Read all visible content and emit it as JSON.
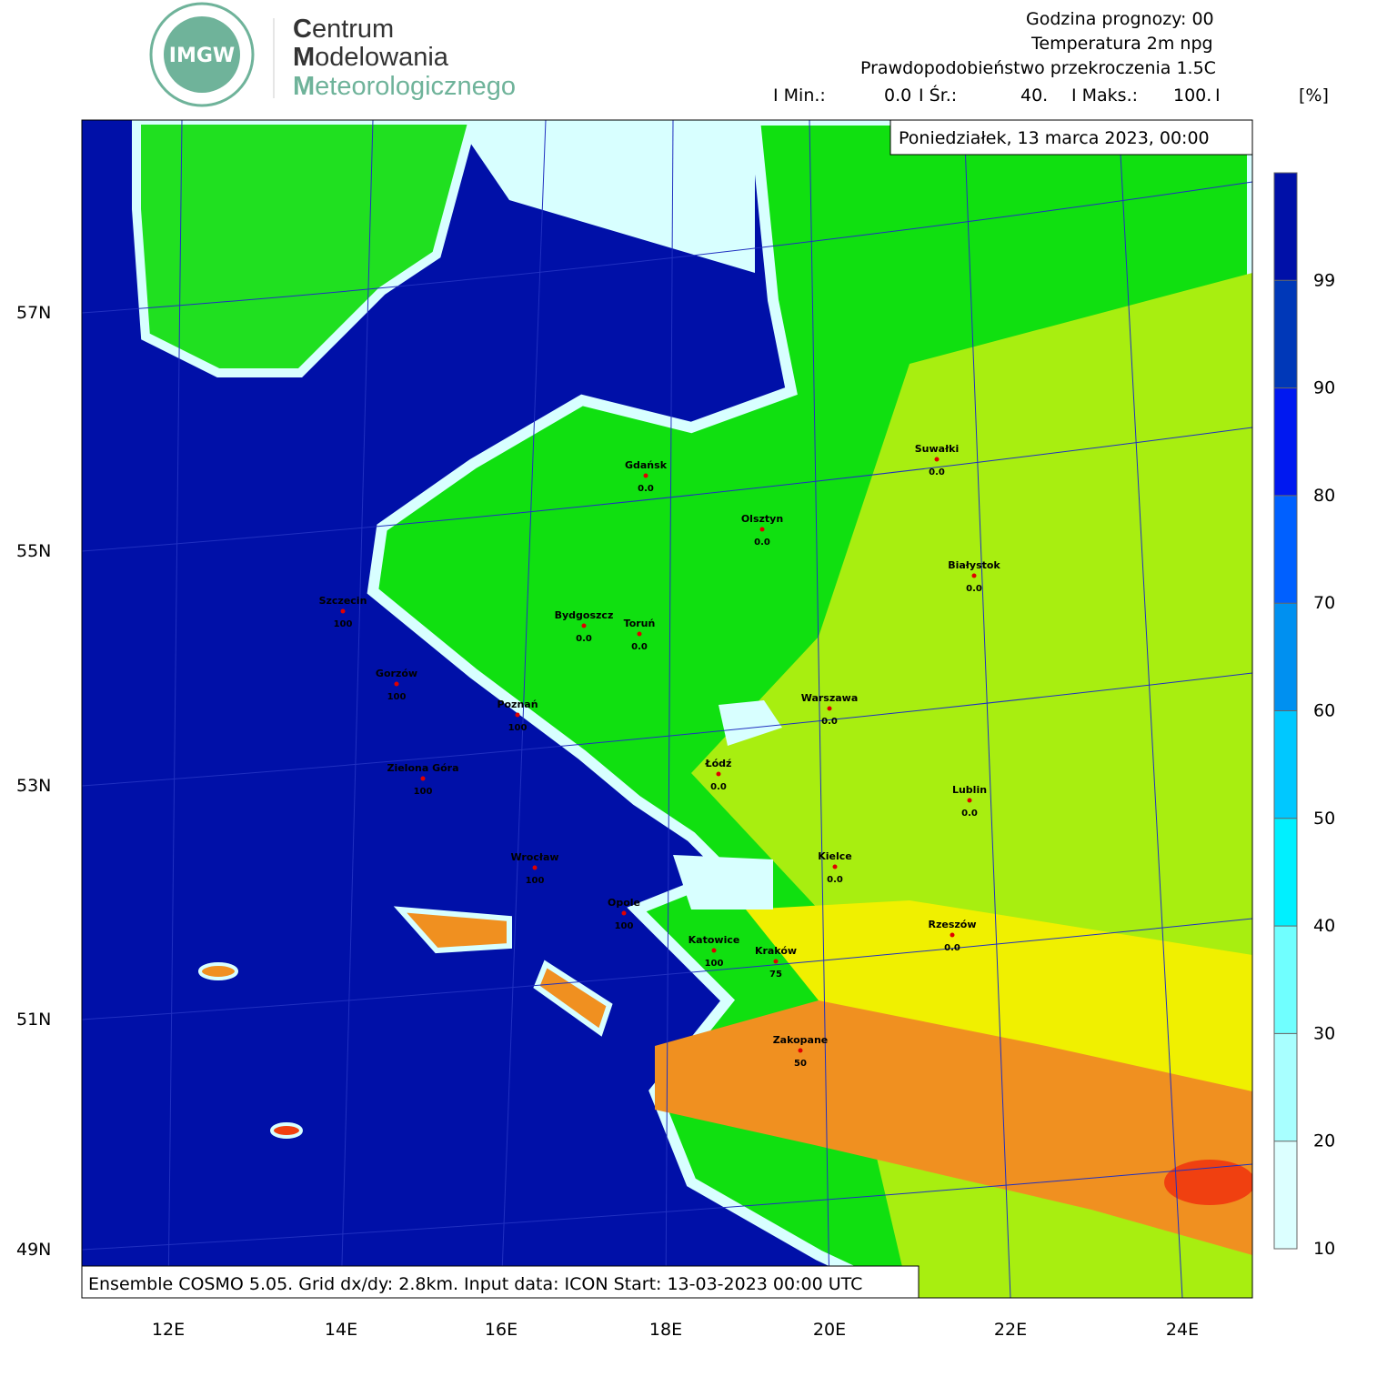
{
  "header": {
    "logo_text": "IMGW",
    "org_lines": [
      "Centrum",
      "Modelowania",
      "Meteorologicznego"
    ],
    "info_lines": [
      "Godzina prognozy: 00",
      "Temperatura 2m npg",
      "Prawdopodobieństwo przekroczenia 1.5C"
    ],
    "stats": [
      {
        "label": "I Min.:",
        "value": "0.0"
      },
      {
        "label": "I Śr.:",
        "value": "40."
      },
      {
        "label": "I Maks.:",
        "value": "100."
      }
    ],
    "stats_end": "I",
    "unit": "[%]"
  },
  "map": {
    "date": "Poniedziałek, 13 marca 2023, 00:00",
    "footer": "Ensemble COSMO 5.05. Grid dx/dy: 2.8km. Input data: ICON Start: 13-03-2023 00:00 UTC",
    "lat_labels": [
      "57N",
      "55N",
      "53N",
      "51N",
      "49N"
    ],
    "lon_labels": [
      "12E",
      "14E",
      "16E",
      "18E",
      "20E",
      "22E",
      "24E"
    ],
    "cities": [
      {
        "name": "Gdańsk",
        "value": "0.0"
      },
      {
        "name": "Olsztyn",
        "value": "0.0"
      },
      {
        "name": "Suwałki",
        "value": "0.0"
      },
      {
        "name": "Białystok",
        "value": "0.0"
      },
      {
        "name": "Szczecin",
        "value": "100"
      },
      {
        "name": "Bydgoszcz",
        "value": "0.0"
      },
      {
        "name": "Toruń",
        "value": "0.0"
      },
      {
        "name": "Gorzów",
        "value": "100"
      },
      {
        "name": "Poznań",
        "value": "100"
      },
      {
        "name": "Warszawa",
        "value": "0.0"
      },
      {
        "name": "Łódź",
        "value": "0.0"
      },
      {
        "name": "Zielona Góra",
        "value": "100"
      },
      {
        "name": "Lublin",
        "value": "0.0"
      },
      {
        "name": "Wrocław",
        "value": "100"
      },
      {
        "name": "Kielce",
        "value": "0.0"
      },
      {
        "name": "Opole",
        "value": "100"
      },
      {
        "name": "Rzeszów",
        "value": "0.0"
      },
      {
        "name": "Katowice",
        "value": "100"
      },
      {
        "name": "Kraków",
        "value": "75"
      },
      {
        "name": "Zakopane",
        "value": "50"
      }
    ]
  },
  "colorbar": {
    "ticks": [
      10,
      20,
      30,
      40,
      50,
      60,
      70,
      80,
      90,
      99
    ],
    "colors": [
      "#dcffff",
      "#a8ffff",
      "#70ffff",
      "#00f0ff",
      "#00c8ff",
      "#0090f0",
      "#0060ff",
      "#0018f0",
      "#0038b8",
      "#0010a8"
    ]
  }
}
